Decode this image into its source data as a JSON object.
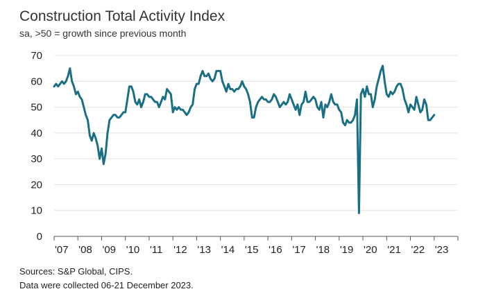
{
  "chart_data": {
    "type": "line",
    "title": "Construction Total Activity Index",
    "subtitle": "sa, >50 = growth since previous month",
    "xlabel": "",
    "ylabel": "",
    "ylim": [
      0,
      70
    ],
    "yticks": [
      0,
      10,
      20,
      30,
      40,
      50,
      60,
      70
    ],
    "xticks": [
      "'07",
      "'08",
      "'09",
      "'10",
      "'11",
      "'12",
      "'13",
      "'14",
      "'15",
      "'16",
      "'17",
      "'18",
      "'19",
      "'20",
      "'21",
      "'22",
      "'23"
    ],
    "x_start_year": 2007,
    "grid": true,
    "series": [
      {
        "name": "Construction Total Activity Index",
        "color": "#1b6f85",
        "values": [
          58,
          59,
          58,
          59,
          60,
          59,
          60,
          62,
          65,
          60,
          58,
          55,
          56,
          54,
          53,
          50,
          47,
          45,
          39,
          37,
          40,
          38,
          35,
          30,
          34,
          28,
          32,
          40,
          45,
          46,
          47,
          47,
          46,
          46,
          47,
          48,
          48,
          53,
          58,
          58,
          56,
          52,
          51,
          53,
          50,
          52,
          55,
          55,
          54,
          54,
          53,
          52,
          52,
          50,
          52,
          54,
          53,
          57,
          56,
          55,
          48,
          50,
          49,
          50,
          49,
          49,
          48,
          47,
          48,
          50,
          51,
          57,
          59,
          59,
          62,
          64,
          62,
          62,
          63,
          61,
          60,
          61,
          64,
          64,
          64,
          60,
          58,
          56,
          59,
          57,
          57,
          56,
          57,
          57,
          58,
          60,
          58,
          57,
          55,
          52,
          46,
          46,
          50,
          52,
          53,
          54,
          53,
          53,
          52,
          52,
          53,
          55,
          54,
          52,
          50,
          51,
          52,
          51,
          52,
          55,
          53,
          51,
          49,
          51,
          47,
          51,
          52,
          56,
          52,
          52,
          53,
          54,
          53,
          50,
          49,
          52,
          46,
          51,
          50,
          52,
          55,
          52,
          51,
          51,
          49,
          48,
          44,
          43,
          45,
          44,
          44,
          45,
          47,
          53,
          9,
          55,
          57,
          54,
          58,
          55,
          55,
          50,
          53,
          58,
          61,
          64,
          66,
          60,
          55,
          54,
          56,
          55,
          56,
          58,
          59,
          59,
          57,
          53,
          51,
          48,
          51,
          50,
          49,
          54,
          51,
          48,
          49,
          53,
          51,
          45,
          45,
          46,
          47
        ]
      }
    ]
  },
  "footer": {
    "sources": "Sources: S&P Global, CIPS.",
    "note": "Data were collected 06-21 December 2023."
  }
}
